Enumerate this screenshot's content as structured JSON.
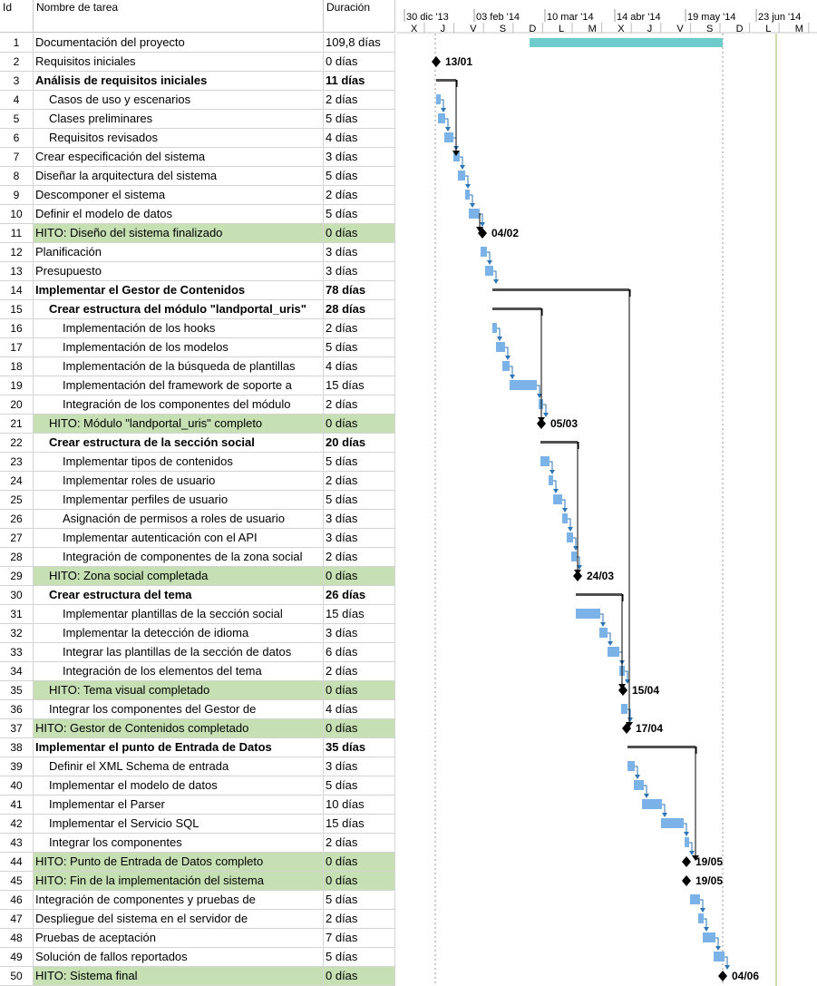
{
  "columns": {
    "id": "Id",
    "name": "Nombre de tarea",
    "duration": "Duración"
  },
  "timescale": {
    "top": [
      "30 dic '13",
      "03 feb '14",
      "10 mar '14",
      "14 abr '14",
      "19 may '14",
      "23 jun '14"
    ],
    "bottom": [
      "X",
      "J",
      "V",
      "S",
      "D",
      "L",
      "M",
      "X",
      "J",
      "V",
      "S",
      "D",
      "L",
      "M"
    ]
  },
  "colors": {
    "task_bar": "#7bb3e9",
    "summary_bar": "#505050",
    "project_bar": "#6fcccc",
    "milestone_fill": "#c6e0b4",
    "link_arrow": "#2e75b6",
    "today_line": "#9bbb59"
  },
  "tasks": [
    {
      "id": "1",
      "name": "Documentación del proyecto",
      "duration": "109,8 días",
      "indent": 0,
      "bold": false,
      "milestone": false
    },
    {
      "id": "2",
      "name": "Requisitos iniciales",
      "duration": "0 días",
      "indent": 0,
      "bold": false,
      "milestone": false
    },
    {
      "id": "3",
      "name": "Análisis de requisitos iniciales",
      "duration": "11 días",
      "indent": 0,
      "bold": true,
      "milestone": false
    },
    {
      "id": "4",
      "name": "Casos de uso y escenarios",
      "duration": "2 días",
      "indent": 1,
      "bold": false,
      "milestone": false
    },
    {
      "id": "5",
      "name": "Clases preliminares",
      "duration": "5 días",
      "indent": 1,
      "bold": false,
      "milestone": false
    },
    {
      "id": "6",
      "name": "Requisitos revisados",
      "duration": "4 días",
      "indent": 1,
      "bold": false,
      "milestone": false
    },
    {
      "id": "7",
      "name": "Crear especificación del sistema",
      "duration": "3 días",
      "indent": 0,
      "bold": false,
      "milestone": false
    },
    {
      "id": "8",
      "name": "Diseñar la arquitectura del sistema",
      "duration": "5 días",
      "indent": 0,
      "bold": false,
      "milestone": false
    },
    {
      "id": "9",
      "name": "Descomponer el sistema",
      "duration": "2 días",
      "indent": 0,
      "bold": false,
      "milestone": false
    },
    {
      "id": "10",
      "name": "Definir el modelo de datos",
      "duration": "5 días",
      "indent": 0,
      "bold": false,
      "milestone": false
    },
    {
      "id": "11",
      "name": "HITO: Diseño del sistema finalizado",
      "duration": "0 días",
      "indent": 0,
      "bold": false,
      "milestone": true
    },
    {
      "id": "12",
      "name": "Planificación",
      "duration": "3 días",
      "indent": 0,
      "bold": false,
      "milestone": false
    },
    {
      "id": "13",
      "name": "Presupuesto",
      "duration": "3 días",
      "indent": 0,
      "bold": false,
      "milestone": false
    },
    {
      "id": "14",
      "name": "Implementar el Gestor de Contenidos",
      "duration": "78 días",
      "indent": 0,
      "bold": true,
      "milestone": false
    },
    {
      "id": "15",
      "name": "Crear estructura del módulo \"landportal_uris\"",
      "duration": "28 días",
      "indent": 1,
      "bold": true,
      "milestone": false
    },
    {
      "id": "16",
      "name": "Implementación de los hooks",
      "duration": "2 días",
      "indent": 2,
      "bold": false,
      "milestone": false
    },
    {
      "id": "17",
      "name": "Implementación de los modelos",
      "duration": "5 días",
      "indent": 2,
      "bold": false,
      "milestone": false
    },
    {
      "id": "18",
      "name": "Implementación de la búsqueda de plantillas",
      "duration": "4 días",
      "indent": 2,
      "bold": false,
      "milestone": false
    },
    {
      "id": "19",
      "name": "Implementación del framework de soporte a",
      "duration": "15 días",
      "indent": 2,
      "bold": false,
      "milestone": false
    },
    {
      "id": "20",
      "name": "Integración de los componentes del módulo",
      "duration": "2 días",
      "indent": 2,
      "bold": false,
      "milestone": false
    },
    {
      "id": "21",
      "name": "HITO: Módulo \"landportal_uris\" completo",
      "duration": "0 días",
      "indent": 1,
      "bold": false,
      "milestone": true
    },
    {
      "id": "22",
      "name": "Crear estructura de la sección social",
      "duration": "20 días",
      "indent": 1,
      "bold": true,
      "milestone": false
    },
    {
      "id": "23",
      "name": "Implementar tipos de contenidos",
      "duration": "5 días",
      "indent": 2,
      "bold": false,
      "milestone": false
    },
    {
      "id": "24",
      "name": "Implementar roles de usuario",
      "duration": "2 días",
      "indent": 2,
      "bold": false,
      "milestone": false
    },
    {
      "id": "25",
      "name": "Implementar perfiles de usuario",
      "duration": "5 días",
      "indent": 2,
      "bold": false,
      "milestone": false
    },
    {
      "id": "26",
      "name": "Asignación de permisos a roles de usuario",
      "duration": "3 días",
      "indent": 2,
      "bold": false,
      "milestone": false
    },
    {
      "id": "27",
      "name": "Implementar autenticación con el API",
      "duration": "3 días",
      "indent": 2,
      "bold": false,
      "milestone": false
    },
    {
      "id": "28",
      "name": "Integración de componentes de la zona social",
      "duration": "2 días",
      "indent": 2,
      "bold": false,
      "milestone": false
    },
    {
      "id": "29",
      "name": "HITO: Zona social completada",
      "duration": "0 días",
      "indent": 1,
      "bold": false,
      "milestone": true
    },
    {
      "id": "30",
      "name": "Crear estructura del tema",
      "duration": "26 días",
      "indent": 1,
      "bold": true,
      "milestone": false
    },
    {
      "id": "31",
      "name": "Implementar plantillas de la sección social",
      "duration": "15 días",
      "indent": 2,
      "bold": false,
      "milestone": false
    },
    {
      "id": "32",
      "name": "Implementar la detección de idioma",
      "duration": "3 días",
      "indent": 2,
      "bold": false,
      "milestone": false
    },
    {
      "id": "33",
      "name": "Integrar las plantillas de la sección de datos",
      "duration": "6 días",
      "indent": 2,
      "bold": false,
      "milestone": false
    },
    {
      "id": "34",
      "name": "Integración de los elementos del tema",
      "duration": "2 días",
      "indent": 2,
      "bold": false,
      "milestone": false
    },
    {
      "id": "35",
      "name": "HITO: Tema visual completado",
      "duration": "0 días",
      "indent": 1,
      "bold": false,
      "milestone": true
    },
    {
      "id": "36",
      "name": "Integrar los componentes del Gestor de",
      "duration": "4 días",
      "indent": 1,
      "bold": false,
      "milestone": false
    },
    {
      "id": "37",
      "name": "HITO: Gestor de Contenidos completado",
      "duration": "0 días",
      "indent": 0,
      "bold": false,
      "milestone": true
    },
    {
      "id": "38",
      "name": "Implementar el punto de Entrada de Datos",
      "duration": "35 días",
      "indent": 0,
      "bold": true,
      "milestone": false
    },
    {
      "id": "39",
      "name": "Definir el XML Schema de entrada",
      "duration": "3 días",
      "indent": 1,
      "bold": false,
      "milestone": false
    },
    {
      "id": "40",
      "name": "Implementar el modelo de datos",
      "duration": "5 días",
      "indent": 1,
      "bold": false,
      "milestone": false
    },
    {
      "id": "41",
      "name": "Implementar el Parser",
      "duration": "10 días",
      "indent": 1,
      "bold": false,
      "milestone": false
    },
    {
      "id": "42",
      "name": "Implementar el Servicio SQL",
      "duration": "15 días",
      "indent": 1,
      "bold": false,
      "milestone": false
    },
    {
      "id": "43",
      "name": "Integrar los componentes",
      "duration": "2 días",
      "indent": 1,
      "bold": false,
      "milestone": false
    },
    {
      "id": "44",
      "name": "HITO: Punto de Entrada de Datos completo",
      "duration": "0 días",
      "indent": 0,
      "bold": false,
      "milestone": true
    },
    {
      "id": "45",
      "name": "HITO: Fin de la implementación del sistema",
      "duration": "0 días",
      "indent": 0,
      "bold": false,
      "milestone": true
    },
    {
      "id": "46",
      "name": "Integración de componentes y pruebas de",
      "duration": "5 días",
      "indent": 0,
      "bold": false,
      "milestone": false
    },
    {
      "id": "47",
      "name": "Despliegue del sistema en el servidor de",
      "duration": "2 días",
      "indent": 0,
      "bold": false,
      "milestone": false
    },
    {
      "id": "48",
      "name": "Pruebas de aceptación",
      "duration": "7 días",
      "indent": 0,
      "bold": false,
      "milestone": false
    },
    {
      "id": "49",
      "name": "Solución de fallos reportados",
      "duration": "5 días",
      "indent": 0,
      "bold": false,
      "milestone": false
    },
    {
      "id": "50",
      "name": "HITO: Sistema final",
      "duration": "0 días",
      "indent": 0,
      "bold": false,
      "milestone": true
    }
  ],
  "milestone_labels": [
    {
      "row": "2",
      "text": "13/01"
    },
    {
      "row": "11",
      "text": "04/02"
    },
    {
      "row": "21",
      "text": "05/03"
    },
    {
      "row": "29",
      "text": "24/03"
    },
    {
      "row": "35",
      "text": "15/04"
    },
    {
      "row": "37",
      "text": "17/04"
    },
    {
      "row": "44",
      "text": "19/05"
    },
    {
      "row": "45",
      "text": "19/05"
    },
    {
      "row": "50",
      "text": "04/06"
    }
  ]
}
